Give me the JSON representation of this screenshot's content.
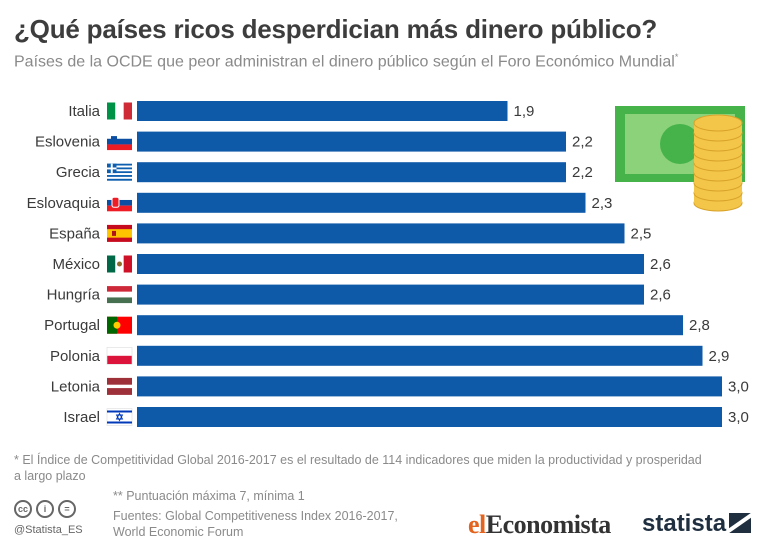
{
  "header": {
    "title": "¿Qué países ricos desperdician más dinero público?",
    "subtitle": "Países de la OCDE que peor administran el dinero público según el Foro Económico Mundial",
    "subtitle_mark": "*"
  },
  "chart_data": {
    "type": "bar",
    "orientation": "horizontal",
    "categories": [
      "Italia",
      "Eslovenia",
      "Grecia",
      "Eslovaquia",
      "España",
      "México",
      "Hungría",
      "Portugal",
      "Polonia",
      "Letonia",
      "Israel"
    ],
    "values": [
      1.9,
      2.2,
      2.2,
      2.3,
      2.5,
      2.6,
      2.6,
      2.8,
      2.9,
      3.0,
      3.0
    ],
    "value_labels": [
      "1,9",
      "2,2",
      "2,2",
      "2,3",
      "2,5",
      "2,6",
      "2,6",
      "2,8",
      "2,9",
      "3,0",
      "3,0"
    ],
    "bar_color": "#0f5aa8",
    "grid": false
  },
  "footer": {
    "note1": "* El Índice de Competitividad Global 2016-2017 es el resultado de 114 indicadores que miden la productividad y prosperidad a largo plazo",
    "note2": "** Puntuación máxima 7, mínima 1",
    "source_line1": "Fuentes: Global Competitiveness Index 2016-2017,",
    "source_line2": "World Economic Forum",
    "handle": "@Statista_ES",
    "logo_eleconomista_a": "el",
    "logo_eleconomista_b": "Economista",
    "logo_statista": "statista"
  },
  "icons": {
    "illustration": "money-coins-icon",
    "license": "creative-commons-icons"
  }
}
